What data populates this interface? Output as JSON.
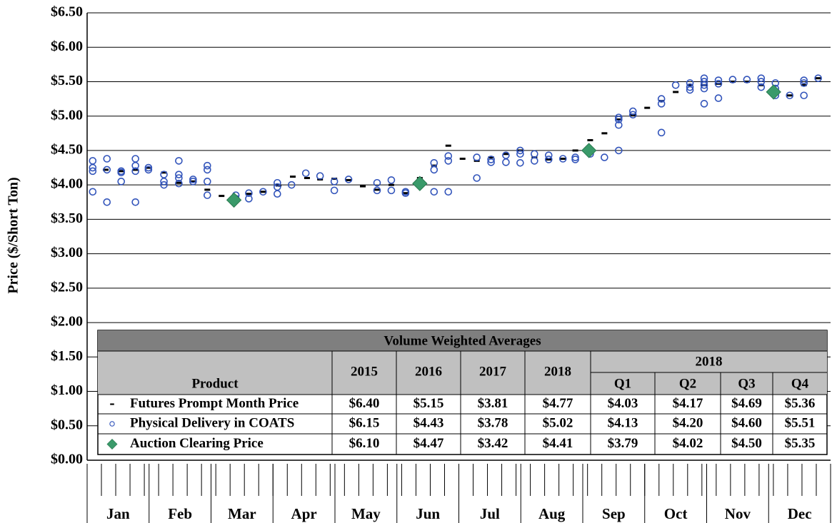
{
  "chart_data": {
    "type": "scatter",
    "y_label": "Price ($/Short Ton)",
    "categories": [
      "Jan",
      "Feb",
      "Mar",
      "Apr",
      "May",
      "Jun",
      "Jul",
      "Aug",
      "Sep",
      "Oct",
      "Nov",
      "Dec"
    ],
    "xlim": [
      0,
      12
    ],
    "ylim": [
      0,
      6.5
    ],
    "yticks": [
      {
        "value": 0,
        "label": "$0.00"
      },
      {
        "value": 0.5,
        "label": "$0.50"
      },
      {
        "value": 1,
        "label": "$1.00"
      },
      {
        "value": 1.5,
        "label": "$1.50"
      },
      {
        "value": 2,
        "label": "$2.00"
      },
      {
        "value": 2.5,
        "label": "$2.50"
      },
      {
        "value": 3,
        "label": "$3.00"
      },
      {
        "value": 3.5,
        "label": "$3.50"
      },
      {
        "value": 4,
        "label": "$4.00"
      },
      {
        "value": 4.5,
        "label": "$4.50"
      },
      {
        "value": 5,
        "label": "$5.00"
      },
      {
        "value": 5.5,
        "label": "$5.50"
      },
      {
        "value": 6,
        "label": "$6.00"
      },
      {
        "value": 6.5,
        "label": "$6.50"
      }
    ],
    "grid": true,
    "series": [
      {
        "name": "Futures Prompt Month Price",
        "color": "#000000",
        "marker": "dash",
        "x": [
          0.3,
          0.55,
          0.78,
          0.99,
          1.24,
          1.48,
          1.71,
          1.94,
          2.17,
          2.4,
          2.61,
          2.84,
          3.09,
          3.32,
          3.55,
          3.76,
          3.99,
          4.22,
          4.45,
          4.68,
          4.91,
          5.14,
          5.37,
          5.6,
          5.83,
          6.06,
          6.29,
          6.52,
          6.76,
          6.99,
          7.22,
          7.45,
          7.68,
          7.88,
          8.12,
          8.35,
          8.58,
          8.81,
          9.04,
          9.27,
          9.5,
          9.73,
          9.96,
          10.19,
          10.42,
          10.65,
          10.88,
          11.11,
          11.34,
          11.57,
          11.8
        ],
        "values": [
          4.22,
          4.2,
          4.22,
          4.25,
          4.18,
          4.03,
          4.05,
          3.93,
          3.84,
          3.83,
          3.87,
          3.9,
          3.99,
          4.12,
          4.1,
          4.08,
          4.09,
          4.07,
          3.98,
          3.93,
          4.0,
          3.88,
          4.1,
          4.28,
          4.57,
          4.38,
          4.35,
          4.4,
          4.45,
          4.5,
          4.4,
          4.37,
          4.38,
          4.5,
          4.65,
          4.75,
          4.95,
          5.02,
          5.12,
          5.22,
          5.35,
          5.45,
          5.45,
          5.47,
          5.5,
          5.5,
          5.45,
          5.35,
          5.3,
          5.45,
          5.55
        ]
      },
      {
        "name": "Physical Delivery in COATS",
        "color": "#3355bb",
        "marker": "circle",
        "x": [
          0.09,
          0.09,
          0.09,
          0.09,
          0.32,
          0.32,
          0.32,
          0.55,
          0.55,
          0.55,
          0.78,
          0.78,
          0.78,
          0.78,
          0.99,
          0.99,
          1.24,
          1.24,
          1.24,
          1.48,
          1.48,
          1.48,
          1.48,
          1.71,
          1.71,
          1.94,
          1.94,
          1.94,
          1.94,
          2.4,
          2.4,
          2.61,
          2.61,
          2.84,
          3.07,
          3.07,
          3.07,
          3.3,
          3.53,
          3.76,
          3.99,
          3.99,
          4.22,
          4.68,
          4.68,
          4.91,
          4.91,
          5.14,
          5.14,
          5.37,
          5.6,
          5.6,
          5.6,
          5.83,
          5.83,
          5.83,
          6.29,
          6.29,
          6.52,
          6.52,
          6.76,
          6.76,
          6.99,
          6.99,
          6.99,
          7.22,
          7.22,
          7.45,
          7.45,
          7.68,
          7.88,
          7.88,
          8.12,
          8.35,
          8.58,
          8.58,
          8.58,
          8.58,
          8.81,
          8.81,
          9.27,
          9.27,
          9.27,
          9.5,
          9.73,
          9.73,
          9.73,
          9.96,
          9.96,
          9.96,
          9.96,
          9.96,
          10.19,
          10.19,
          10.19,
          10.42,
          10.65,
          10.88,
          10.88,
          10.88,
          11.11,
          11.11,
          11.11,
          11.11,
          11.34,
          11.57,
          11.57,
          11.57,
          11.8
        ],
        "values": [
          4.35,
          4.25,
          4.2,
          3.9,
          4.38,
          3.75,
          4.22,
          4.2,
          4.05,
          4.18,
          4.38,
          4.28,
          4.2,
          3.75,
          4.25,
          4.22,
          4.15,
          4.05,
          4.0,
          4.35,
          4.15,
          4.1,
          4.02,
          4.08,
          4.05,
          4.28,
          4.22,
          4.05,
          3.85,
          3.85,
          3.8,
          3.88,
          3.8,
          3.9,
          4.03,
          3.97,
          3.87,
          4.0,
          4.17,
          4.13,
          4.05,
          3.92,
          4.08,
          4.03,
          3.92,
          4.07,
          3.92,
          3.9,
          3.88,
          4.0,
          4.32,
          4.22,
          3.9,
          4.42,
          4.35,
          3.9,
          4.4,
          4.1,
          4.37,
          4.33,
          4.43,
          4.33,
          4.5,
          4.45,
          4.32,
          4.45,
          4.35,
          4.43,
          4.37,
          4.38,
          4.4,
          4.37,
          4.45,
          4.4,
          4.98,
          4.95,
          4.87,
          4.5,
          5.07,
          5.02,
          5.25,
          5.18,
          4.76,
          5.45,
          5.48,
          5.42,
          5.38,
          5.55,
          5.5,
          5.45,
          5.4,
          5.18,
          5.52,
          5.47,
          5.26,
          5.53,
          5.53,
          5.55,
          5.5,
          5.42,
          5.48,
          5.4,
          5.35,
          5.3,
          5.3,
          5.52,
          5.48,
          5.3,
          5.55
        ]
      },
      {
        "name": "Auction Clearing Price",
        "color": "#3a9a6a",
        "marker": "diamond",
        "x": [
          2.37,
          5.37,
          8.1,
          11.08
        ],
        "values": [
          3.78,
          4.02,
          4.5,
          5.35
        ]
      }
    ]
  },
  "table": {
    "title": "Volume Weighted Averages",
    "header": {
      "product": "Product",
      "years": [
        "2015",
        "2016",
        "2017",
        "2018"
      ],
      "group": "2018",
      "quarters": [
        "Q1",
        "Q2",
        "Q3",
        "Q4"
      ]
    },
    "rows": [
      [
        "$6.40",
        "$5.15",
        "$3.81",
        "$4.77",
        "$4.03",
        "$4.17",
        "$4.69",
        "$5.36"
      ],
      [
        "$6.15",
        "$4.43",
        "$3.78",
        "$5.02",
        "$4.13",
        "$4.20",
        "$4.60",
        "$5.51"
      ],
      [
        "$6.10",
        "$4.47",
        "$3.42",
        "$4.41",
        "$3.79",
        "$4.02",
        "$4.50",
        "$5.35"
      ]
    ]
  }
}
